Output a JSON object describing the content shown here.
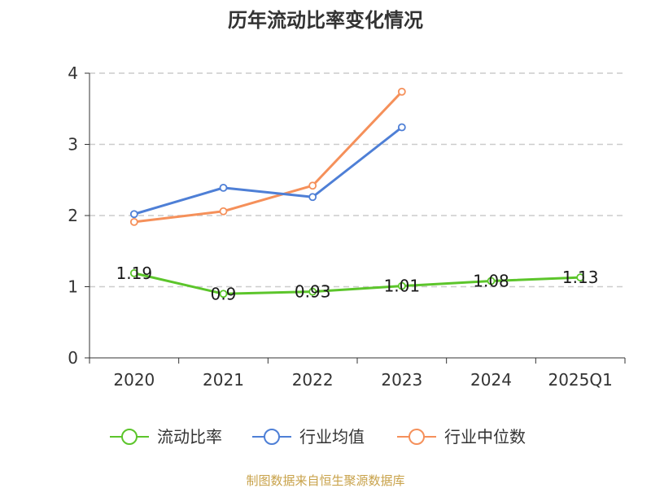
{
  "chart_data": {
    "type": "line",
    "title": "历年流动比率变化情况",
    "categories": [
      "2020",
      "2021",
      "2022",
      "2023",
      "2024",
      "2025Q1"
    ],
    "ylim": [
      0,
      4
    ],
    "yticks": [
      "0",
      "1",
      "2",
      "3",
      "4"
    ],
    "grid": true,
    "legend_position": "bottom",
    "series": [
      {
        "name": "流动比率",
        "color": "#5cc52b",
        "values": [
          1.19,
          0.9,
          0.93,
          1.01,
          1.08,
          1.13
        ],
        "labels": [
          "1.19",
          "0.9",
          "0.93",
          "1.01",
          "1.08",
          "1.13"
        ]
      },
      {
        "name": "行业均值",
        "color": "#4e7fd6",
        "values": [
          2.02,
          2.39,
          2.26,
          3.24,
          null,
          null
        ]
      },
      {
        "name": "行业中位数",
        "color": "#f5905a",
        "values": [
          1.91,
          2.06,
          2.42,
          3.74,
          null,
          null
        ]
      }
    ],
    "source": "制图数据来自恒生聚源数据库"
  }
}
